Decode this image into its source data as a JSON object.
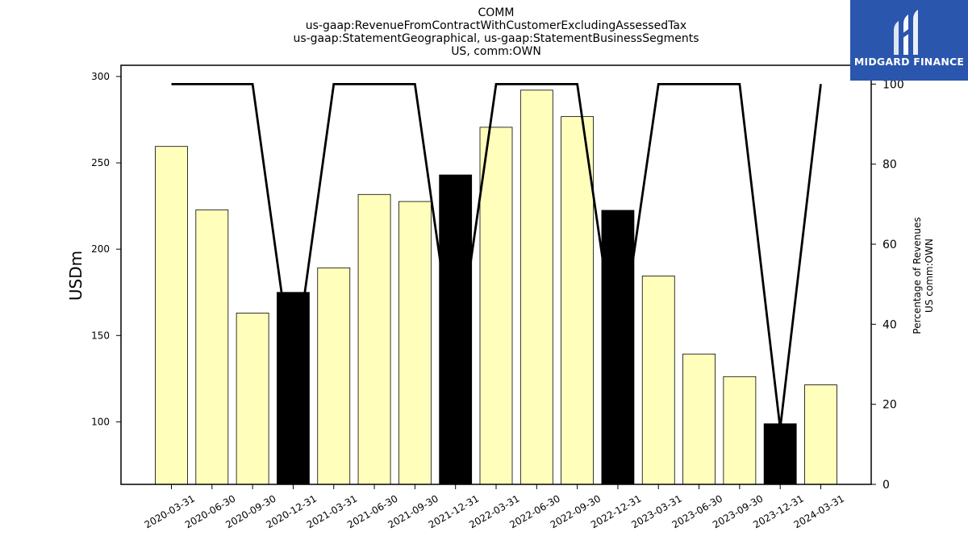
{
  "title": {
    "line1": "COMM",
    "line2": "us-gaap:RevenueFromContractWithCustomerExcludingAssessedTax",
    "line3": "us-gaap:StatementGeographical, us-gaap:StatementBusinessSegments",
    "line4": "US, comm:OWN"
  },
  "logo": {
    "text": "MIDGARD FINANCE",
    "color": "#2a56ad"
  },
  "chart_data": {
    "type": "bar",
    "categories": [
      "2020-03-31",
      "2020-06-30",
      "2020-09-30",
      "2020-12-31",
      "2021-03-31",
      "2021-06-30",
      "2021-09-30",
      "2021-12-31",
      "2022-03-31",
      "2022-06-30",
      "2022-09-30",
      "2022-12-31",
      "2023-03-31",
      "2023-06-30",
      "2023-09-30",
      "2023-12-31",
      "2024-03-31"
    ],
    "series": [
      {
        "type": "bar",
        "axis": "left",
        "values": [
          259.5,
          222.8,
          163.0,
          175.0,
          189.2,
          231.7,
          227.6,
          243.0,
          270.6,
          292.1,
          276.8,
          222.5,
          184.5,
          139.3,
          126.2,
          98.9,
          121.4
        ],
        "colors": [
          "#ffffbb",
          "#ffffbb",
          "#ffffbb",
          "#000000",
          "#ffffbb",
          "#ffffbb",
          "#ffffbb",
          "#000000",
          "#ffffbb",
          "#ffffbb",
          "#ffffbb",
          "#000000",
          "#ffffbb",
          "#ffffbb",
          "#ffffbb",
          "#000000",
          "#ffffbb"
        ]
      },
      {
        "type": "line",
        "axis": "right",
        "values": [
          100,
          100,
          100,
          27,
          100,
          100,
          100,
          29,
          100,
          100,
          100,
          30,
          100,
          100,
          100,
          14,
          100
        ],
        "color": "#000000"
      }
    ],
    "ylabel": "USDm",
    "ylabel_right": [
      "Percentage of Revenues",
      "US comm:OWN"
    ],
    "ylim": [
      63.8,
      306.5
    ],
    "yticks": [
      100,
      150,
      200,
      250,
      300
    ],
    "ylim_right": [
      0,
      104.7
    ],
    "yticks_right": [
      0,
      20,
      40,
      60,
      80,
      100
    ],
    "grid": false,
    "bar_fill": "#ffffbb",
    "bar_highlight": "#000000"
  }
}
